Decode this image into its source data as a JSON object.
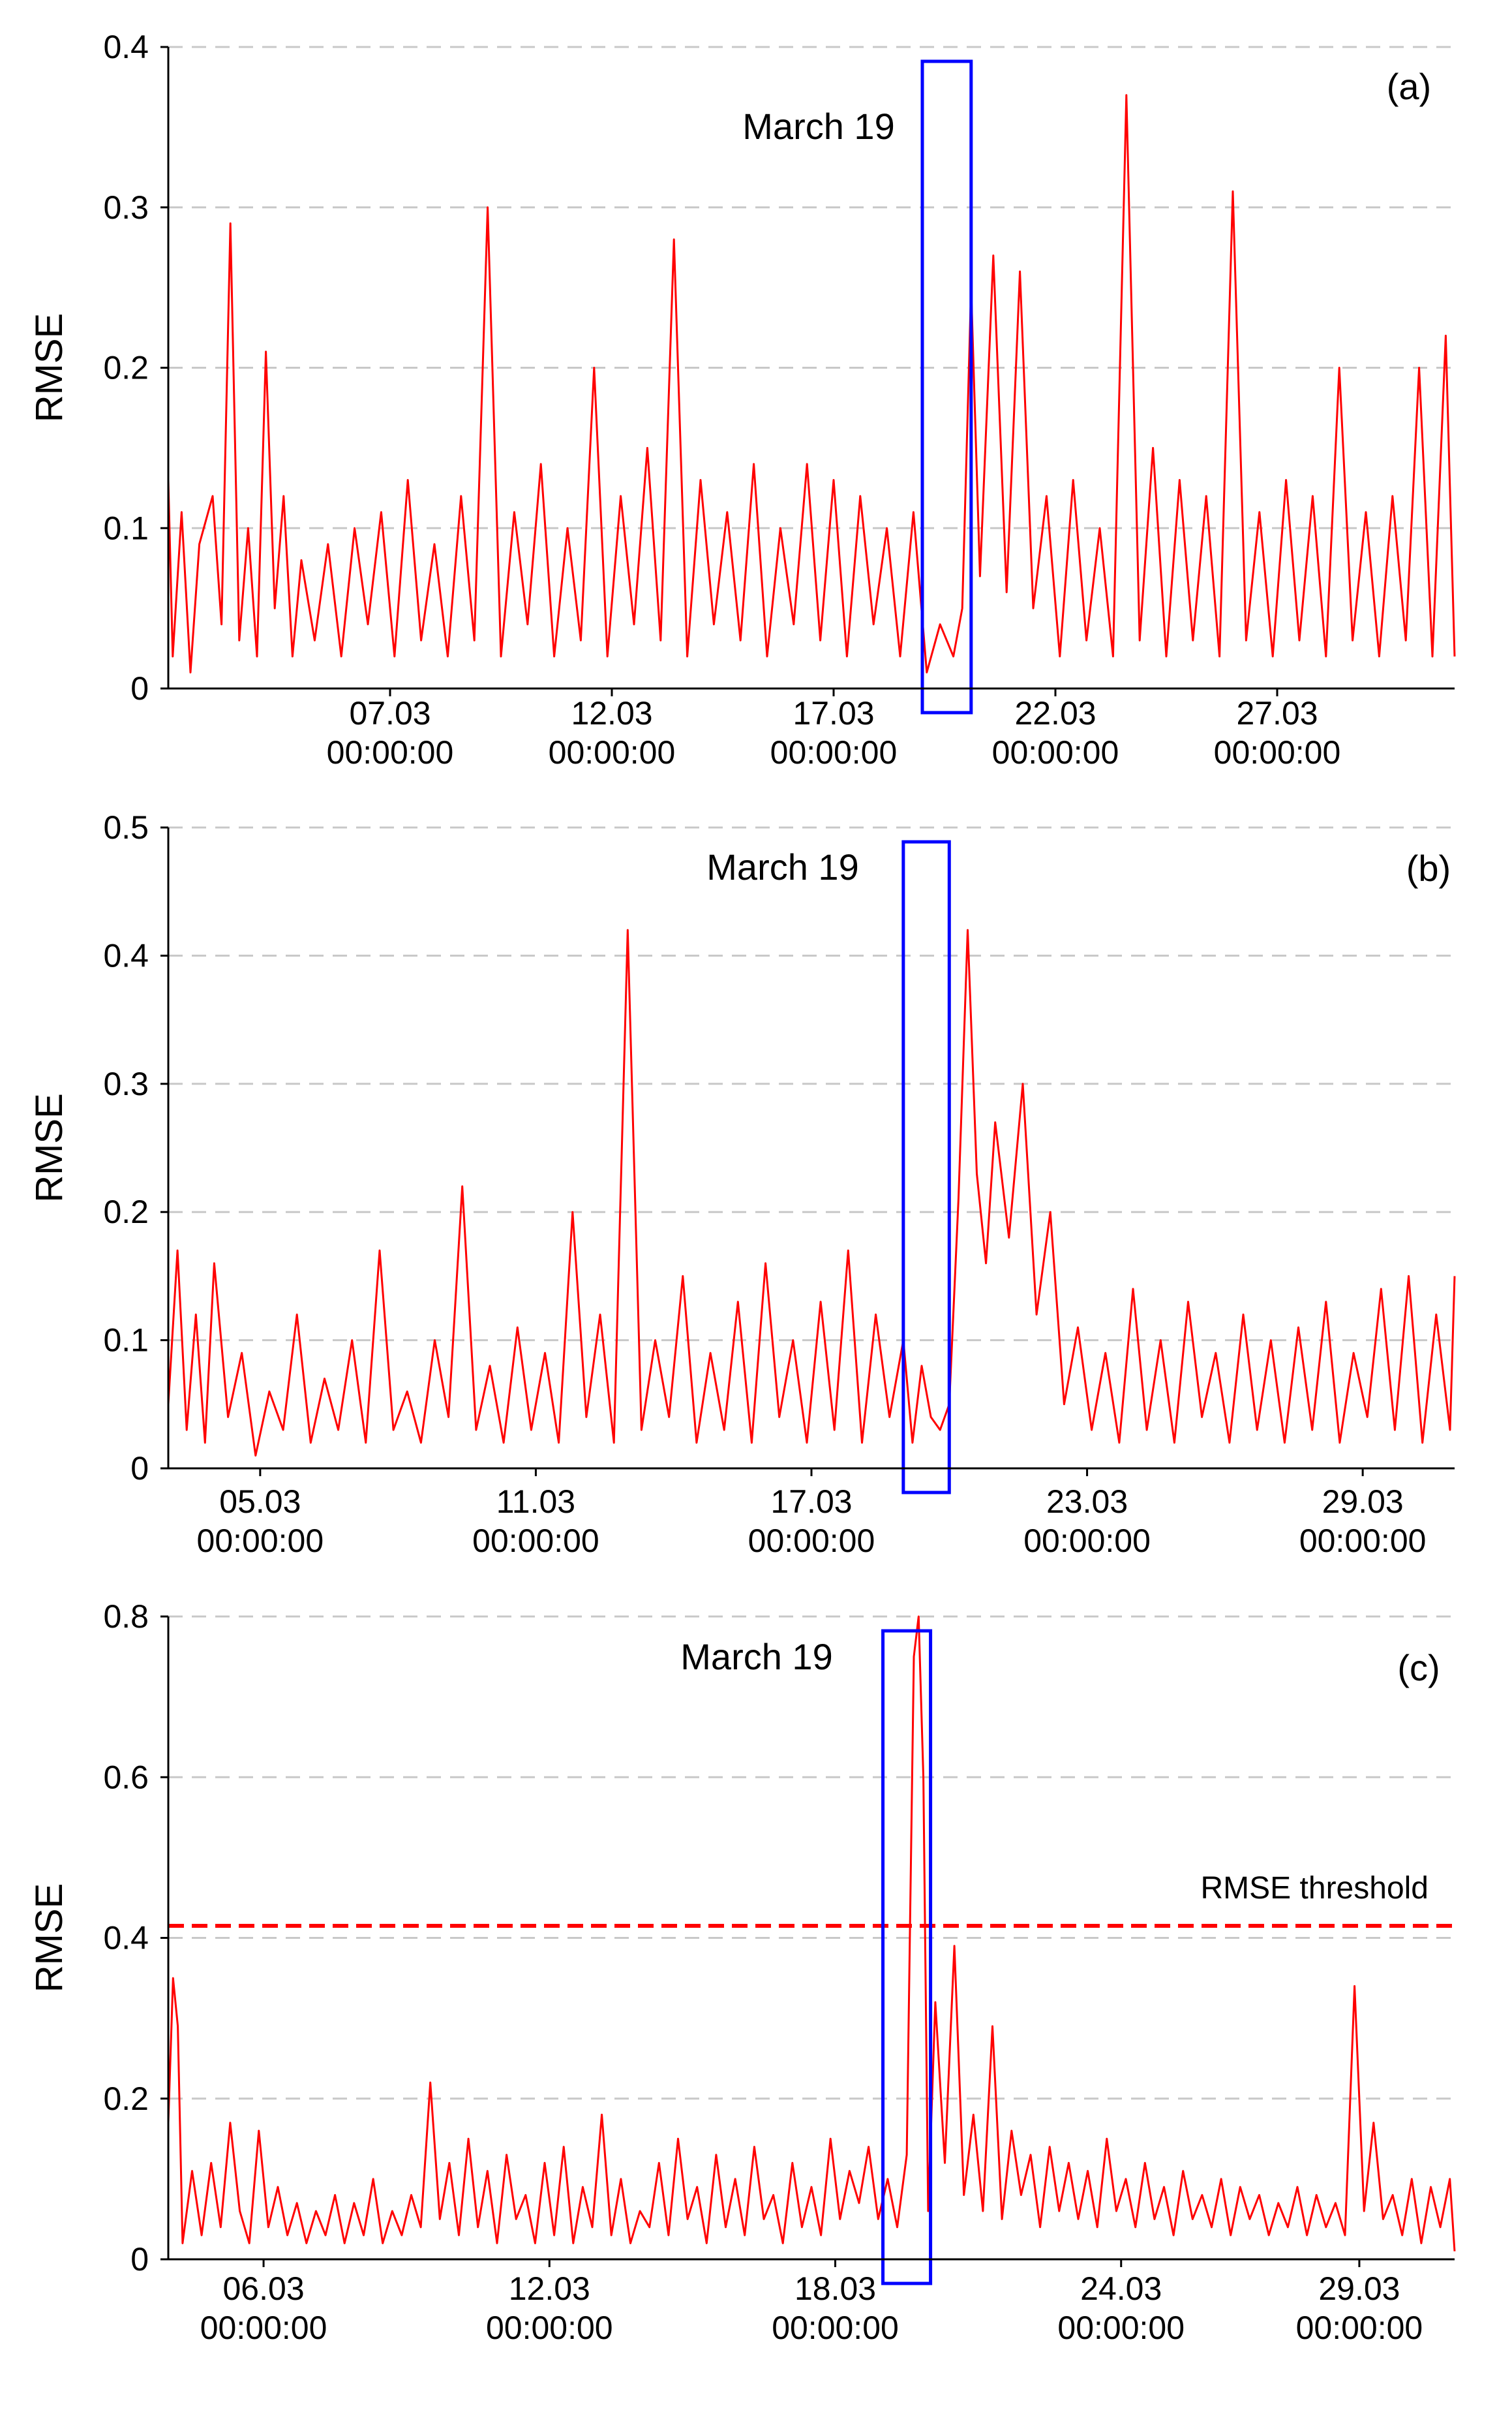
{
  "chart_data": [
    {
      "type": "line",
      "panel_label": "(a)",
      "ylabel": "RMSE",
      "ylim": [
        0,
        0.4
      ],
      "yticks": [
        0,
        0.1,
        0.2,
        0.3,
        0.4
      ],
      "ytick_labels": [
        "0",
        "0.1",
        "0.2",
        "0.3",
        "0.4"
      ],
      "xlim_day": [
        2.0,
        31.0
      ],
      "xticks": [
        {
          "day": 7,
          "date": "07.03",
          "time": "00:00:00"
        },
        {
          "day": 12,
          "date": "12.03",
          "time": "00:00:00"
        },
        {
          "day": 17,
          "date": "17.03",
          "time": "00:00:00"
        },
        {
          "day": 22,
          "date": "22.03",
          "time": "00:00:00"
        },
        {
          "day": 27,
          "date": "27.03",
          "time": "00:00:00"
        }
      ],
      "grid": true,
      "series_color": "#ff0000",
      "highlight": {
        "label": "March 19",
        "from_day": 19.0,
        "to_day": 20.1,
        "color": "#0000ff"
      },
      "series": [
        {
          "x_day": [
            2.0,
            2.1,
            2.3,
            2.5,
            2.7,
            3.0,
            3.2,
            3.4,
            3.6,
            3.8,
            4.0,
            4.2,
            4.4,
            4.6,
            4.8,
            5.0,
            5.3,
            5.6,
            5.9,
            6.2,
            6.5,
            6.8,
            7.1,
            7.4,
            7.7,
            8.0,
            8.3,
            8.6,
            8.9,
            9.2,
            9.5,
            9.8,
            10.1,
            10.4,
            10.7,
            11.0,
            11.3,
            11.6,
            11.9,
            12.2,
            12.5,
            12.8,
            13.1,
            13.4,
            13.7,
            14.0,
            14.3,
            14.6,
            14.9,
            15.2,
            15.5,
            15.8,
            16.1,
            16.4,
            16.7,
            17.0,
            17.3,
            17.6,
            17.9,
            18.2,
            18.5,
            18.8,
            19.1,
            19.4,
            19.7,
            19.9,
            20.1,
            20.3,
            20.6,
            20.9,
            21.2,
            21.5,
            21.8,
            22.1,
            22.4,
            22.7,
            23.0,
            23.3,
            23.6,
            23.9,
            24.2,
            24.5,
            24.8,
            25.1,
            25.4,
            25.7,
            26.0,
            26.3,
            26.6,
            26.9,
            27.2,
            27.5,
            27.8,
            28.1,
            28.4,
            28.7,
            29.0,
            29.3,
            29.6,
            29.9,
            30.2,
            30.5,
            30.8,
            31.0
          ],
          "values": [
            0.13,
            0.02,
            0.11,
            0.01,
            0.09,
            0.12,
            0.04,
            0.29,
            0.03,
            0.1,
            0.02,
            0.21,
            0.05,
            0.12,
            0.02,
            0.08,
            0.03,
            0.09,
            0.02,
            0.1,
            0.04,
            0.11,
            0.02,
            0.13,
            0.03,
            0.09,
            0.02,
            0.12,
            0.03,
            0.3,
            0.02,
            0.11,
            0.04,
            0.14,
            0.02,
            0.1,
            0.03,
            0.2,
            0.02,
            0.12,
            0.04,
            0.15,
            0.03,
            0.28,
            0.02,
            0.13,
            0.04,
            0.11,
            0.03,
            0.14,
            0.02,
            0.1,
            0.04,
            0.14,
            0.03,
            0.13,
            0.02,
            0.12,
            0.04,
            0.1,
            0.02,
            0.11,
            0.01,
            0.04,
            0.02,
            0.05,
            0.25,
            0.07,
            0.27,
            0.06,
            0.26,
            0.05,
            0.12,
            0.02,
            0.13,
            0.03,
            0.1,
            0.02,
            0.37,
            0.03,
            0.15,
            0.02,
            0.13,
            0.03,
            0.12,
            0.02,
            0.31,
            0.03,
            0.11,
            0.02,
            0.13,
            0.03,
            0.12,
            0.02,
            0.2,
            0.03,
            0.11,
            0.02,
            0.12,
            0.03,
            0.2,
            0.02,
            0.22,
            0.02
          ]
        }
      ]
    },
    {
      "type": "line",
      "panel_label": "(b)",
      "ylabel": "RMSE",
      "ylim": [
        0,
        0.5
      ],
      "yticks": [
        0,
        0.1,
        0.2,
        0.3,
        0.4,
        0.5
      ],
      "ytick_labels": [
        "0",
        "0.1",
        "0.2",
        "0.3",
        "0.4",
        "0.5"
      ],
      "xlim_day": [
        3.0,
        31.0
      ],
      "xticks": [
        {
          "day": 5,
          "date": "05.03",
          "time": "00:00:00"
        },
        {
          "day": 11,
          "date": "11.03",
          "time": "00:00:00"
        },
        {
          "day": 17,
          "date": "17.03",
          "time": "00:00:00"
        },
        {
          "day": 23,
          "date": "23.03",
          "time": "00:00:00"
        },
        {
          "day": 29,
          "date": "29.03",
          "time": "00:00:00"
        }
      ],
      "grid": true,
      "series_color": "#ff0000",
      "highlight": {
        "label": "March 19",
        "from_day": 19.0,
        "to_day": 20.0,
        "color": "#0000ff"
      },
      "series": [
        {
          "x_day": [
            3.0,
            3.2,
            3.4,
            3.6,
            3.8,
            4.0,
            4.3,
            4.6,
            4.9,
            5.2,
            5.5,
            5.8,
            6.1,
            6.4,
            6.7,
            7.0,
            7.3,
            7.6,
            7.9,
            8.2,
            8.5,
            8.8,
            9.1,
            9.4,
            9.7,
            10.0,
            10.3,
            10.6,
            10.9,
            11.2,
            11.5,
            11.8,
            12.1,
            12.4,
            12.7,
            13.0,
            13.3,
            13.6,
            13.9,
            14.2,
            14.5,
            14.8,
            15.1,
            15.4,
            15.7,
            16.0,
            16.3,
            16.6,
            16.9,
            17.2,
            17.5,
            17.8,
            18.1,
            18.4,
            18.7,
            19.0,
            19.2,
            19.4,
            19.6,
            19.8,
            20.0,
            20.2,
            20.4,
            20.6,
            20.8,
            21.0,
            21.3,
            21.6,
            21.9,
            22.2,
            22.5,
            22.8,
            23.1,
            23.4,
            23.7,
            24.0,
            24.3,
            24.6,
            24.9,
            25.2,
            25.5,
            25.8,
            26.1,
            26.4,
            26.7,
            27.0,
            27.3,
            27.6,
            27.9,
            28.2,
            28.5,
            28.8,
            29.1,
            29.4,
            29.7,
            30.0,
            30.3,
            30.6,
            30.9,
            31.0
          ],
          "values": [
            0.05,
            0.17,
            0.03,
            0.12,
            0.02,
            0.16,
            0.04,
            0.09,
            0.01,
            0.06,
            0.03,
            0.12,
            0.02,
            0.07,
            0.03,
            0.1,
            0.02,
            0.17,
            0.03,
            0.06,
            0.02,
            0.1,
            0.04,
            0.22,
            0.03,
            0.08,
            0.02,
            0.11,
            0.03,
            0.09,
            0.02,
            0.2,
            0.04,
            0.12,
            0.02,
            0.42,
            0.03,
            0.1,
            0.04,
            0.15,
            0.02,
            0.09,
            0.03,
            0.13,
            0.02,
            0.16,
            0.04,
            0.1,
            0.02,
            0.13,
            0.03,
            0.17,
            0.02,
            0.12,
            0.04,
            0.1,
            0.02,
            0.08,
            0.04,
            0.03,
            0.05,
            0.21,
            0.42,
            0.23,
            0.16,
            0.27,
            0.18,
            0.3,
            0.12,
            0.2,
            0.05,
            0.11,
            0.03,
            0.09,
            0.02,
            0.14,
            0.03,
            0.1,
            0.02,
            0.13,
            0.04,
            0.09,
            0.02,
            0.12,
            0.03,
            0.1,
            0.02,
            0.11,
            0.03,
            0.13,
            0.02,
            0.09,
            0.04,
            0.14,
            0.03,
            0.15,
            0.02,
            0.12,
            0.03,
            0.15
          ]
        }
      ]
    },
    {
      "type": "line",
      "panel_label": "(c)",
      "ylabel": "RMSE",
      "ylim": [
        0,
        0.8
      ],
      "yticks": [
        0,
        0.2,
        0.4,
        0.6,
        0.8
      ],
      "ytick_labels": [
        "0",
        "0.2",
        "0.4",
        "0.6",
        "0.8"
      ],
      "xlim_day": [
        4.0,
        31.0
      ],
      "xticks": [
        {
          "day": 6,
          "date": "06.03",
          "time": "00:00:00"
        },
        {
          "day": 12,
          "date": "12.03",
          "time": "00:00:00"
        },
        {
          "day": 18,
          "date": "18.03",
          "time": "00:00:00"
        },
        {
          "day": 24,
          "date": "24.03",
          "time": "00:00:00"
        },
        {
          "day": 29,
          "date": "29.03",
          "time": "00:00:00"
        }
      ],
      "grid": true,
      "series_color": "#ff0000",
      "threshold": {
        "label": "RMSE threshold",
        "value": 0.415,
        "color": "#ff0000"
      },
      "highlight": {
        "label": "March 19",
        "from_day": 19.0,
        "to_day": 20.0,
        "color": "#0000ff"
      },
      "series": [
        {
          "x_day": [
            4.0,
            4.1,
            4.2,
            4.3,
            4.5,
            4.7,
            4.9,
            5.1,
            5.3,
            5.5,
            5.7,
            5.9,
            6.1,
            6.3,
            6.5,
            6.7,
            6.9,
            7.1,
            7.3,
            7.5,
            7.7,
            7.9,
            8.1,
            8.3,
            8.5,
            8.7,
            8.9,
            9.1,
            9.3,
            9.5,
            9.7,
            9.9,
            10.1,
            10.3,
            10.5,
            10.7,
            10.9,
            11.1,
            11.3,
            11.5,
            11.7,
            11.9,
            12.1,
            12.3,
            12.5,
            12.7,
            12.9,
            13.1,
            13.3,
            13.5,
            13.7,
            13.9,
            14.1,
            14.3,
            14.5,
            14.7,
            14.9,
            15.1,
            15.3,
            15.5,
            15.7,
            15.9,
            16.1,
            16.3,
            16.5,
            16.7,
            16.9,
            17.1,
            17.3,
            17.5,
            17.7,
            17.9,
            18.1,
            18.3,
            18.5,
            18.7,
            18.9,
            19.1,
            19.3,
            19.5,
            19.65,
            19.75,
            19.85,
            19.95,
            20.1,
            20.3,
            20.5,
            20.7,
            20.9,
            21.1,
            21.3,
            21.5,
            21.7,
            21.9,
            22.1,
            22.3,
            22.5,
            22.7,
            22.9,
            23.1,
            23.3,
            23.5,
            23.7,
            23.9,
            24.1,
            24.3,
            24.5,
            24.7,
            24.9,
            25.1,
            25.3,
            25.5,
            25.7,
            25.9,
            26.1,
            26.3,
            26.5,
            26.7,
            26.9,
            27.1,
            27.3,
            27.5,
            27.7,
            27.9,
            28.1,
            28.3,
            28.5,
            28.7,
            28.9,
            29.1,
            29.3,
            29.5,
            29.7,
            29.9,
            30.1,
            30.3,
            30.5,
            30.7,
            30.9,
            31.0
          ],
          "values": [
            0.17,
            0.35,
            0.29,
            0.02,
            0.11,
            0.03,
            0.12,
            0.04,
            0.17,
            0.06,
            0.02,
            0.16,
            0.04,
            0.09,
            0.03,
            0.07,
            0.02,
            0.06,
            0.03,
            0.08,
            0.02,
            0.07,
            0.03,
            0.1,
            0.02,
            0.06,
            0.03,
            0.08,
            0.04,
            0.22,
            0.05,
            0.12,
            0.03,
            0.15,
            0.04,
            0.11,
            0.02,
            0.13,
            0.05,
            0.08,
            0.02,
            0.12,
            0.03,
            0.14,
            0.02,
            0.09,
            0.04,
            0.18,
            0.03,
            0.1,
            0.02,
            0.06,
            0.04,
            0.12,
            0.03,
            0.15,
            0.05,
            0.09,
            0.02,
            0.13,
            0.04,
            0.1,
            0.03,
            0.14,
            0.05,
            0.08,
            0.02,
            0.12,
            0.04,
            0.09,
            0.03,
            0.15,
            0.05,
            0.11,
            0.07,
            0.14,
            0.05,
            0.1,
            0.04,
            0.13,
            0.75,
            0.8,
            0.6,
            0.06,
            0.32,
            0.12,
            0.39,
            0.08,
            0.18,
            0.06,
            0.29,
            0.05,
            0.16,
            0.08,
            0.13,
            0.04,
            0.14,
            0.06,
            0.12,
            0.05,
            0.11,
            0.04,
            0.15,
            0.06,
            0.1,
            0.04,
            0.12,
            0.05,
            0.09,
            0.03,
            0.11,
            0.05,
            0.08,
            0.04,
            0.1,
            0.03,
            0.09,
            0.05,
            0.08,
            0.03,
            0.07,
            0.04,
            0.09,
            0.03,
            0.08,
            0.04,
            0.07,
            0.03,
            0.34,
            0.06,
            0.17,
            0.05,
            0.08,
            0.03,
            0.1,
            0.02,
            0.09,
            0.04,
            0.1,
            0.01
          ]
        }
      ]
    }
  ]
}
